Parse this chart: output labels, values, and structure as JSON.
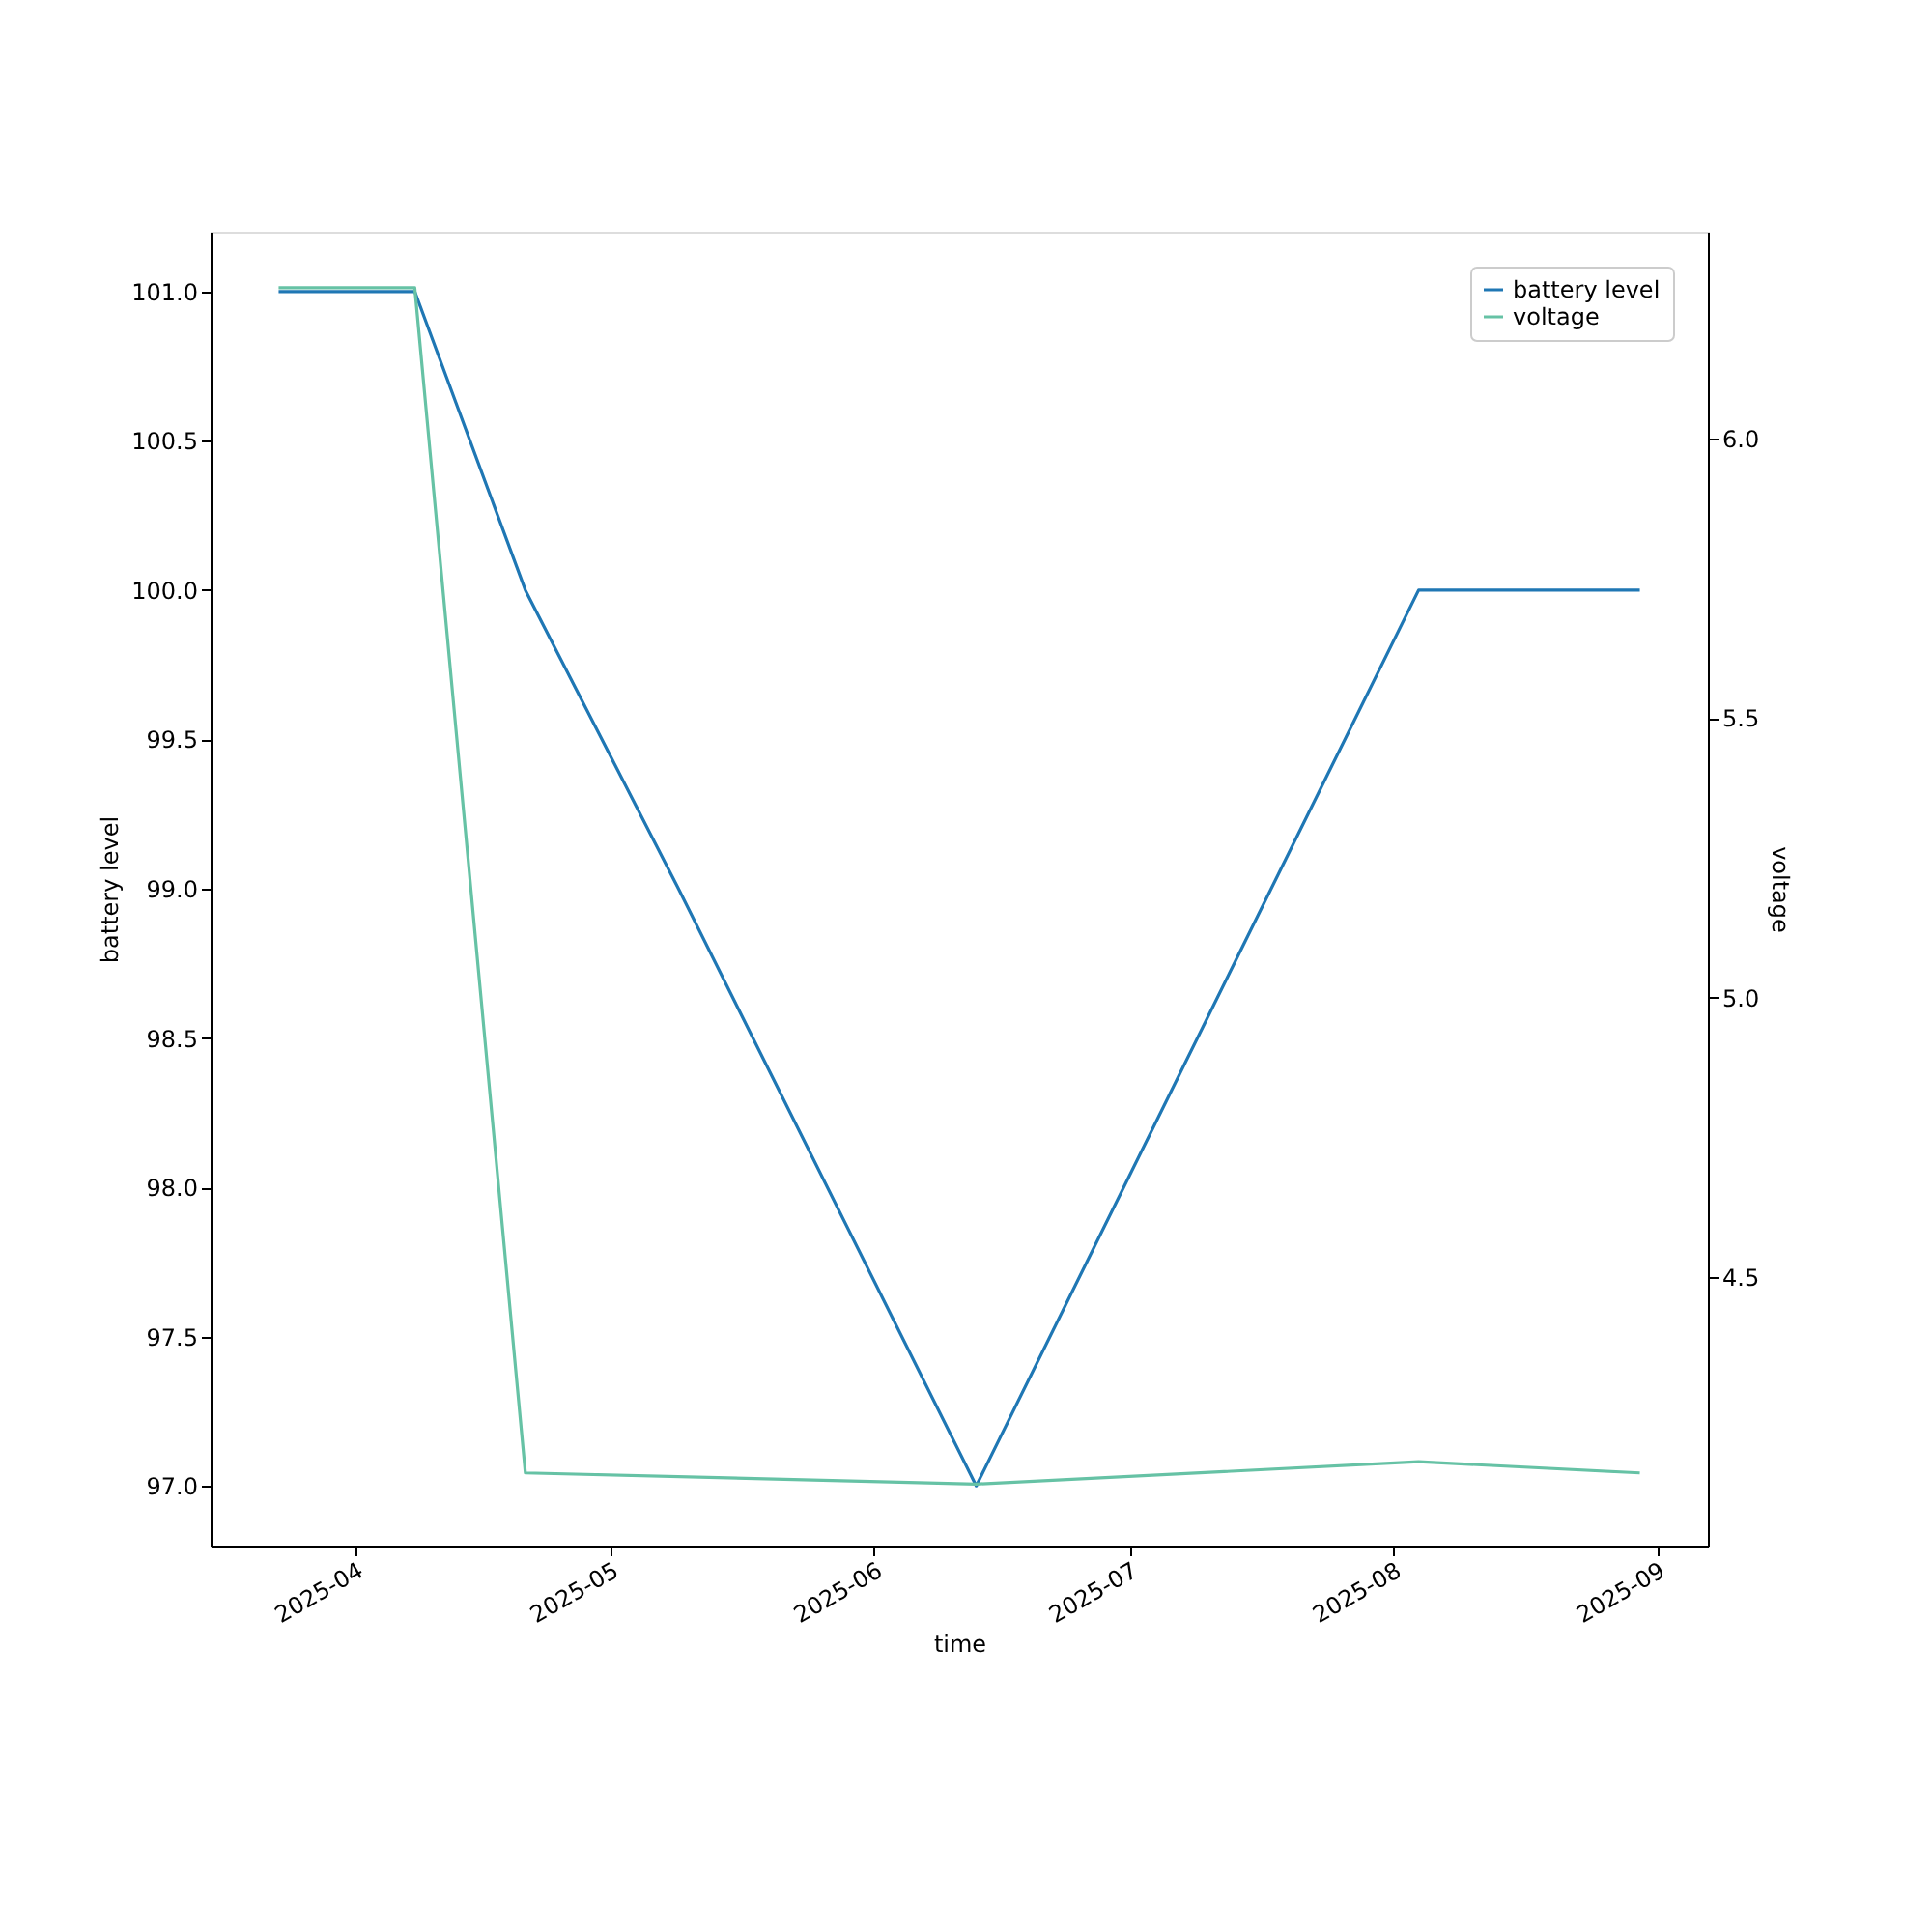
{
  "chart_data": {
    "type": "line",
    "xlabel": "time",
    "ylabel": "battery level",
    "y2label": "voltage",
    "xlim": [
      "2025-03-15",
      "2025-09-07"
    ],
    "xticks": [
      {
        "value": "2025-04-01",
        "label": "2025-04"
      },
      {
        "value": "2025-05-01",
        "label": "2025-05"
      },
      {
        "value": "2025-06-01",
        "label": "2025-06"
      },
      {
        "value": "2025-07-01",
        "label": "2025-07"
      },
      {
        "value": "2025-08-01",
        "label": "2025-08"
      },
      {
        "value": "2025-09-01",
        "label": "2025-09"
      }
    ],
    "ylim": [
      96.8,
      101.2
    ],
    "yticks": [
      {
        "value": 97,
        "label": "97.0"
      },
      97.5,
      {
        "value": 98,
        "label": "98.0"
      },
      98.5,
      {
        "value": 99,
        "label": "99.0"
      },
      99.5,
      {
        "value": 100,
        "label": "100.0"
      },
      100.5,
      {
        "value": 101,
        "label": "101.0"
      }
    ],
    "y2lim": [
      4.02,
      6.37
    ],
    "y2ticks": [
      4.5,
      {
        "value": 5,
        "label": "5.0"
      },
      5.5,
      {
        "value": 6,
        "label": "6.0"
      }
    ],
    "series": [
      {
        "name": "battery level",
        "color": "#1f77b4",
        "x": [
          "2025-03-23",
          "2025-04-08",
          "2025-04-21",
          "2025-05-09",
          "2025-06-13",
          "2025-08-04",
          "2025-08-30"
        ],
        "values": [
          101,
          101,
          100,
          99,
          97,
          100,
          100
        ]
      },
      {
        "name": "voltage",
        "color": "#66c2a5",
        "axis": "y2",
        "x": [
          "2025-03-23",
          "2025-04-08",
          "2025-04-21",
          "2025-06-13",
          "2025-08-04",
          "2025-08-30"
        ],
        "values": [
          6.27,
          6.27,
          4.15,
          4.13,
          4.17,
          4.15
        ]
      }
    ],
    "legend": "top right",
    "grid": false,
    "marker": "none",
    "line_style": "solid"
  }
}
